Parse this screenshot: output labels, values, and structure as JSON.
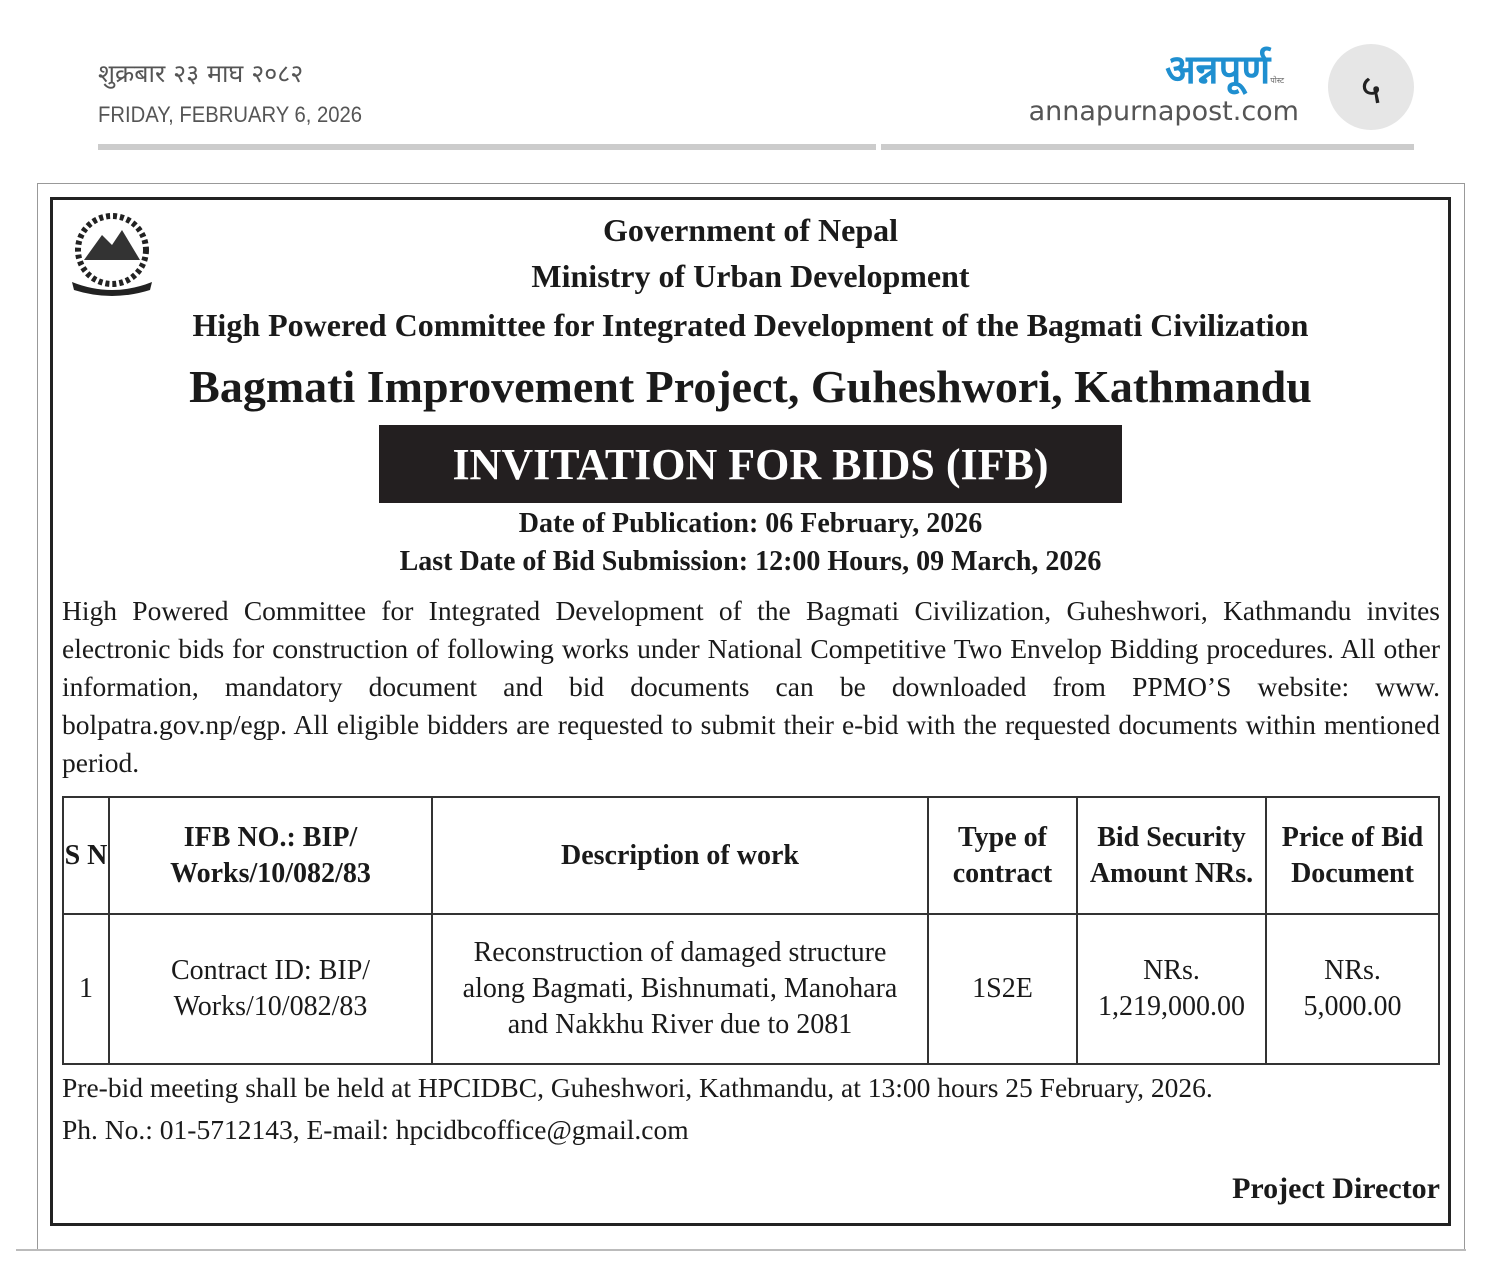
{
  "header": {
    "date_nepali": "शुक्रबार २३ माघ २०८२",
    "date_english": "FRIDAY, FEBRUARY 6, 2026",
    "logo": "अन्नपूर्ण",
    "logo_sub": "पोस्ट",
    "website": "annapurnapost.com",
    "page_number": "५",
    "brand_color": "#1f8fd0"
  },
  "ad": {
    "line1": "Government of Nepal",
    "line2": "Ministry of Urban Development",
    "line3": "High Powered Committee for Integrated Development of the Bagmati Civilization",
    "line4": "Bagmati Improvement Project, Guheshwori, Kathmandu",
    "banner": "INVITATION FOR BIDS (IFB)",
    "publication_date": "Date of Publication: 06 February, 2026",
    "last_date": "Last Date of Bid Submission: 12:00 Hours, 09 March, 2026",
    "paragraph": "High Powered Committee for Integrated Development of the Bagmati Civilization, Guheshwori, Kathmandu invites electronic bids for construction of following works under National Competitive Two Envelop Bidding procedures. All other information, mandatory document and bid documents can be downloaded from PPMO’S website: www. bolpatra.gov.np/egp. All eligible bidders are requested to submit their e-bid with the requested documents within mentioned period.",
    "table": {
      "headers": [
        "S N",
        "IFB NO.: BIP/ Works/10/082/83",
        "Description of work",
        "Type of contract",
        "Bid Security Amount NRs.",
        "Price of Bid Document"
      ],
      "rows": [
        [
          "1",
          "Contract ID: BIP/ Works/10/082/83",
          "Reconstruction of damaged structure along Bagmati, Bishnumati, Manohara and Nakkhu River due to 2081",
          "1S2E",
          "NRs. 1,219,000.00",
          "NRs. 5,000.00"
        ]
      ]
    },
    "prebid": "Pre-bid meeting shall be held at HPCIDBC, Guheshwori, Kathmandu, at 13:00 hours 25 February, 2026.",
    "contact": "Ph. No.: 01-5712143, E-mail: hpcidbcoffice@gmail.com",
    "signatory": "Project Director"
  }
}
